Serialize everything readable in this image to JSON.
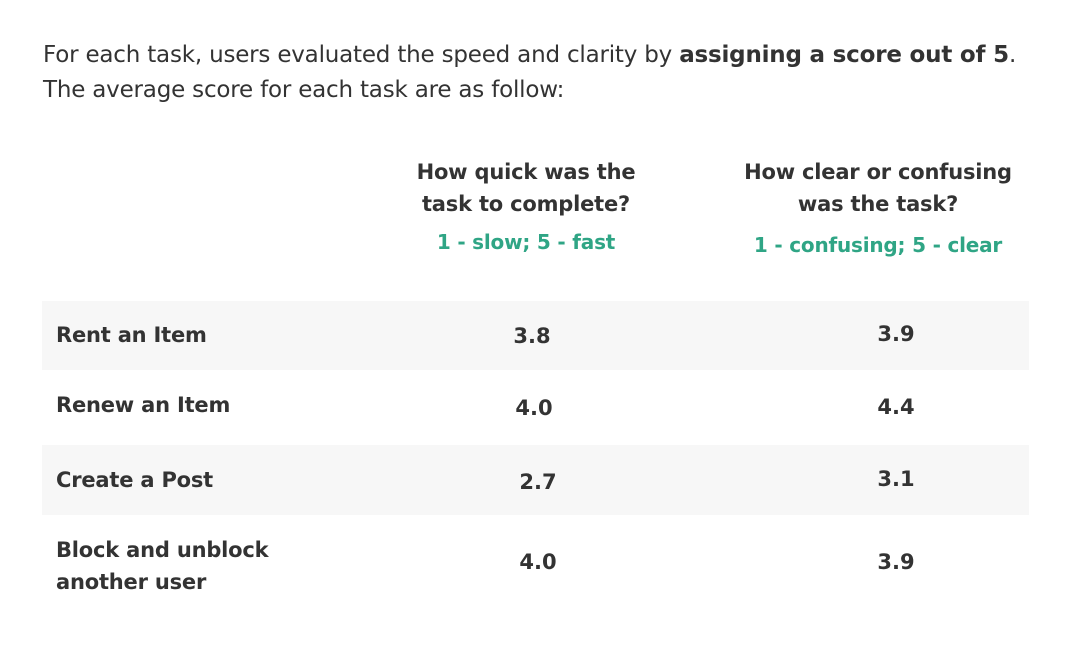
{
  "intro": {
    "before": "For each task, users evaluated the speed and clarity by ",
    "emphasis": "assigning a score out of 5",
    "after": ".",
    "line2": "The average score for each task are as follow:"
  },
  "columns": [
    {
      "question_line1": "How quick was the",
      "question_line2": "task to complete?",
      "scale": "1 - slow; 5 - fast"
    },
    {
      "question_line1": "How clear or confusing",
      "question_line2": "was the task?",
      "scale": "1 - confusing; 5 - clear"
    }
  ],
  "rows": [
    {
      "task_line1": "Rent an Item",
      "task_line2": "",
      "speed": "3.8",
      "clarity": "3.9",
      "shaded": true
    },
    {
      "task_line1": "Renew an Item",
      "task_line2": "",
      "speed": "4.0",
      "clarity": "4.4",
      "shaded": false
    },
    {
      "task_line1": "Create a Post",
      "task_line2": "",
      "speed": "2.7",
      "clarity": "3.1",
      "shaded": true
    },
    {
      "task_line1": "Block and unblock",
      "task_line2": "another user",
      "speed": "4.0",
      "clarity": "3.9",
      "shaded": false
    }
  ],
  "colors": {
    "text": "#333333",
    "accent_green": "#2fa585",
    "row_shade": "#f7f7f7"
  }
}
